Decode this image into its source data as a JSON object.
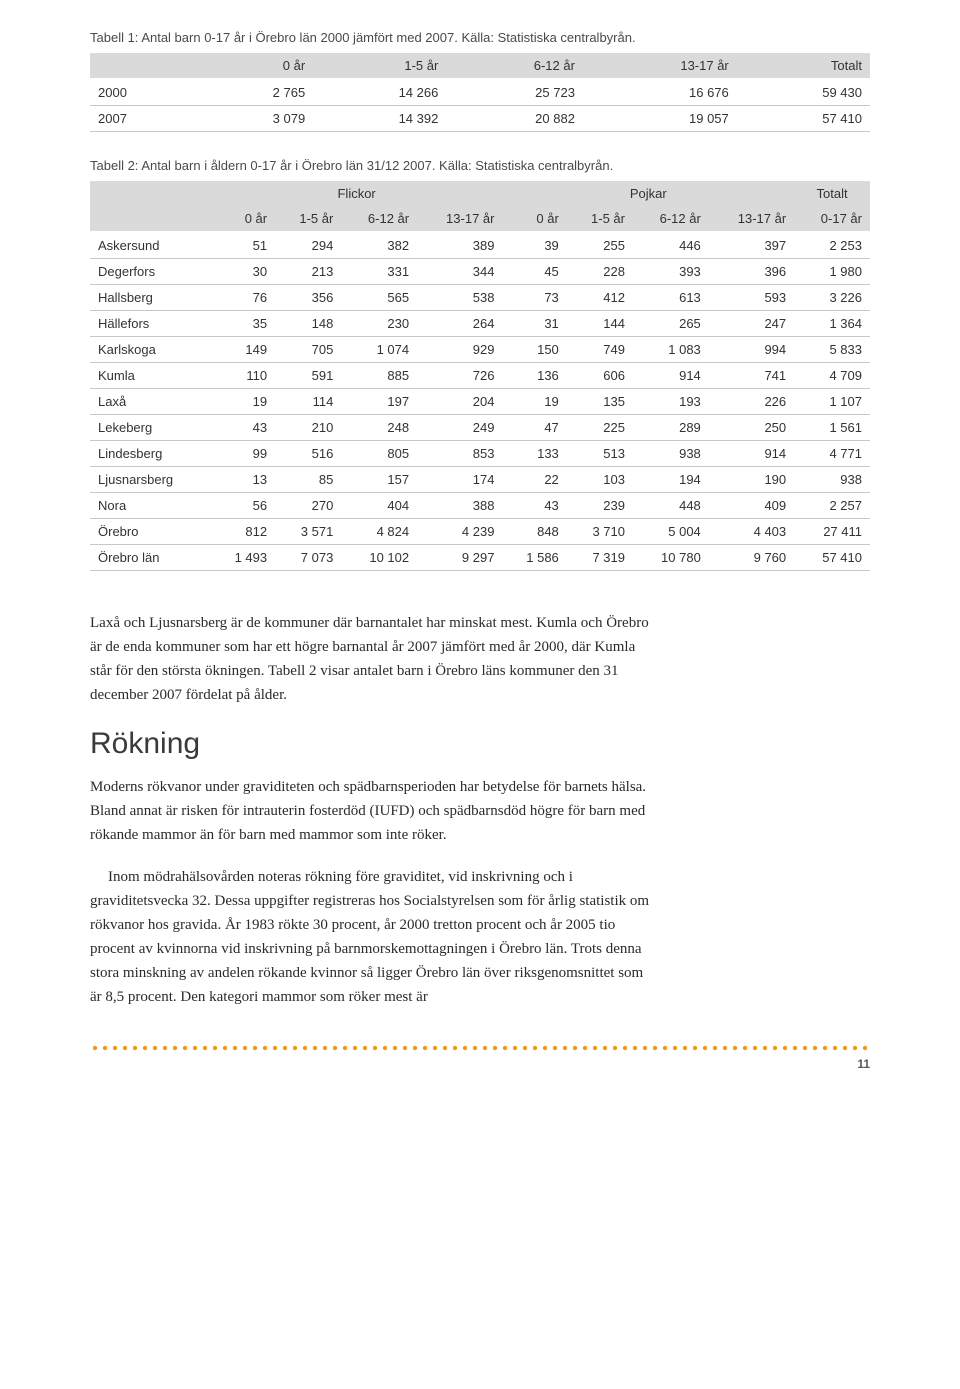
{
  "table1": {
    "caption": "Tabell 1: Antal barn 0-17 år i Örebro län 2000 jämfört med 2007. Källa: Statistiska centralbyrån.",
    "columns": [
      "",
      "0 år",
      "1-5 år",
      "6-12 år",
      "13-17 år",
      "Totalt"
    ],
    "rows": [
      [
        "2000",
        "2 765",
        "14 266",
        "25 723",
        "16 676",
        "59 430"
      ],
      [
        "2007",
        "3 079",
        "14 392",
        "20 882",
        "19 057",
        "57 410"
      ]
    ]
  },
  "table2": {
    "caption": "Tabell 2: Antal barn i åldern 0-17 år i Örebro län 31/12 2007. Källa: Statistiska centralbyrån.",
    "group_headers": [
      "",
      "Flickor",
      "Pojkar",
      "Totalt"
    ],
    "sub_headers": [
      "",
      "0 år",
      "1-5 år",
      "6-12 år",
      "13-17 år",
      "0 år",
      "1-5 år",
      "6-12 år",
      "13-17 år",
      "0-17 år"
    ],
    "rows": [
      [
        "Askersund",
        "51",
        "294",
        "382",
        "389",
        "39",
        "255",
        "446",
        "397",
        "2 253"
      ],
      [
        "Degerfors",
        "30",
        "213",
        "331",
        "344",
        "45",
        "228",
        "393",
        "396",
        "1 980"
      ],
      [
        "Hallsberg",
        "76",
        "356",
        "565",
        "538",
        "73",
        "412",
        "613",
        "593",
        "3 226"
      ],
      [
        "Hällefors",
        "35",
        "148",
        "230",
        "264",
        "31",
        "144",
        "265",
        "247",
        "1 364"
      ],
      [
        "Karlskoga",
        "149",
        "705",
        "1 074",
        "929",
        "150",
        "749",
        "1 083",
        "994",
        "5 833"
      ],
      [
        "Kumla",
        "110",
        "591",
        "885",
        "726",
        "136",
        "606",
        "914",
        "741",
        "4 709"
      ],
      [
        "Laxå",
        "19",
        "114",
        "197",
        "204",
        "19",
        "135",
        "193",
        "226",
        "1 107"
      ],
      [
        "Lekeberg",
        "43",
        "210",
        "248",
        "249",
        "47",
        "225",
        "289",
        "250",
        "1 561"
      ],
      [
        "Lindesberg",
        "99",
        "516",
        "805",
        "853",
        "133",
        "513",
        "938",
        "914",
        "4 771"
      ],
      [
        "Ljusnarsberg",
        "13",
        "85",
        "157",
        "174",
        "22",
        "103",
        "194",
        "190",
        "938"
      ],
      [
        "Nora",
        "56",
        "270",
        "404",
        "388",
        "43",
        "239",
        "448",
        "409",
        "2 257"
      ],
      [
        "Örebro",
        "812",
        "3 571",
        "4 824",
        "4 239",
        "848",
        "3 710",
        "5 004",
        "4 403",
        "27 411"
      ],
      [
        "Örebro län",
        "1 493",
        "7 073",
        "10 102",
        "9 297",
        "1 586",
        "7 319",
        "10 780",
        "9 760",
        "57 410"
      ]
    ]
  },
  "body": {
    "p1": "Laxå och Ljusnarsberg är de kommuner där barnantalet har minskat mest. Kumla och Örebro är de enda kommuner som har ett högre barnantal år 2007 jämfört med år 2000, där Kumla står för den största ökningen. Tabell 2 visar antalet barn i Örebro läns kommuner den 31 december 2007 fördelat på ålder.",
    "h2": "Rökning",
    "p2": "Moderns rökvanor under graviditeten och spädbarnsperioden har betydelse för barnets hälsa. Bland annat är risken för intrauterin fosterdöd (IUFD) och spädbarnsdöd högre för barn med rökande mammor än för barn med mammor som inte röker.",
    "p3": "Inom mödrahälsovården noteras rökning före graviditet, vid inskrivning och i graviditetsvecka 32. Dessa uppgifter registreras hos Socialstyrelsen som för årlig statistik om rökvanor hos gravida. År 1983 rökte 30 procent, år 2000 tretton procent och år 2005 tio procent av kvinnorna vid inskrivning på barnmorskemottagningen i Örebro län. Trots denna stora minskning av andelen rökande kvinnor så ligger Örebro län över riksgenomsnittet som är 8,5 procent. Den kategori mammor som röker mest är"
  },
  "page_number": "11",
  "colors": {
    "header_band": "#dadada",
    "row_border": "#c8c8c8",
    "dot": "#f39a1e",
    "text": "#333333"
  }
}
